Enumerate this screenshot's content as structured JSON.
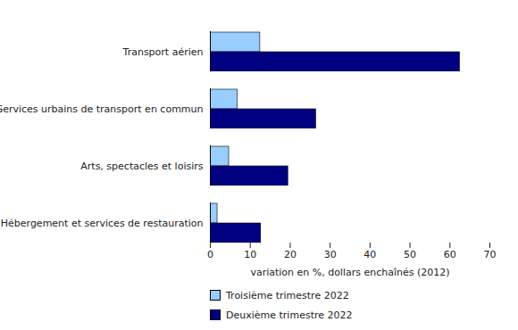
{
  "chart_data": {
    "type": "bar",
    "orientation": "horizontal",
    "grid": false,
    "legend": "bottom",
    "xlabel": "variation en %, dollars enchaînés (2012)",
    "categories": [
      "Transport aérien",
      "Services urbains de transport en commun",
      "Arts, spectacles et loisirs",
      "Hébergement et services de restauration"
    ],
    "series": [
      {
        "name": "Troisième trimestre 2022",
        "color": "#99ccff",
        "values": [
          12.5,
          6.8,
          4.7,
          1.8
        ]
      },
      {
        "name": "Deuxième trimestre 2022",
        "color": "#000080",
        "values": [
          62.5,
          26.5,
          19.5,
          12.7
        ]
      }
    ],
    "xlim": [
      0,
      70
    ],
    "xticks": [
      0,
      10,
      20,
      30,
      40,
      50,
      60,
      70
    ]
  }
}
